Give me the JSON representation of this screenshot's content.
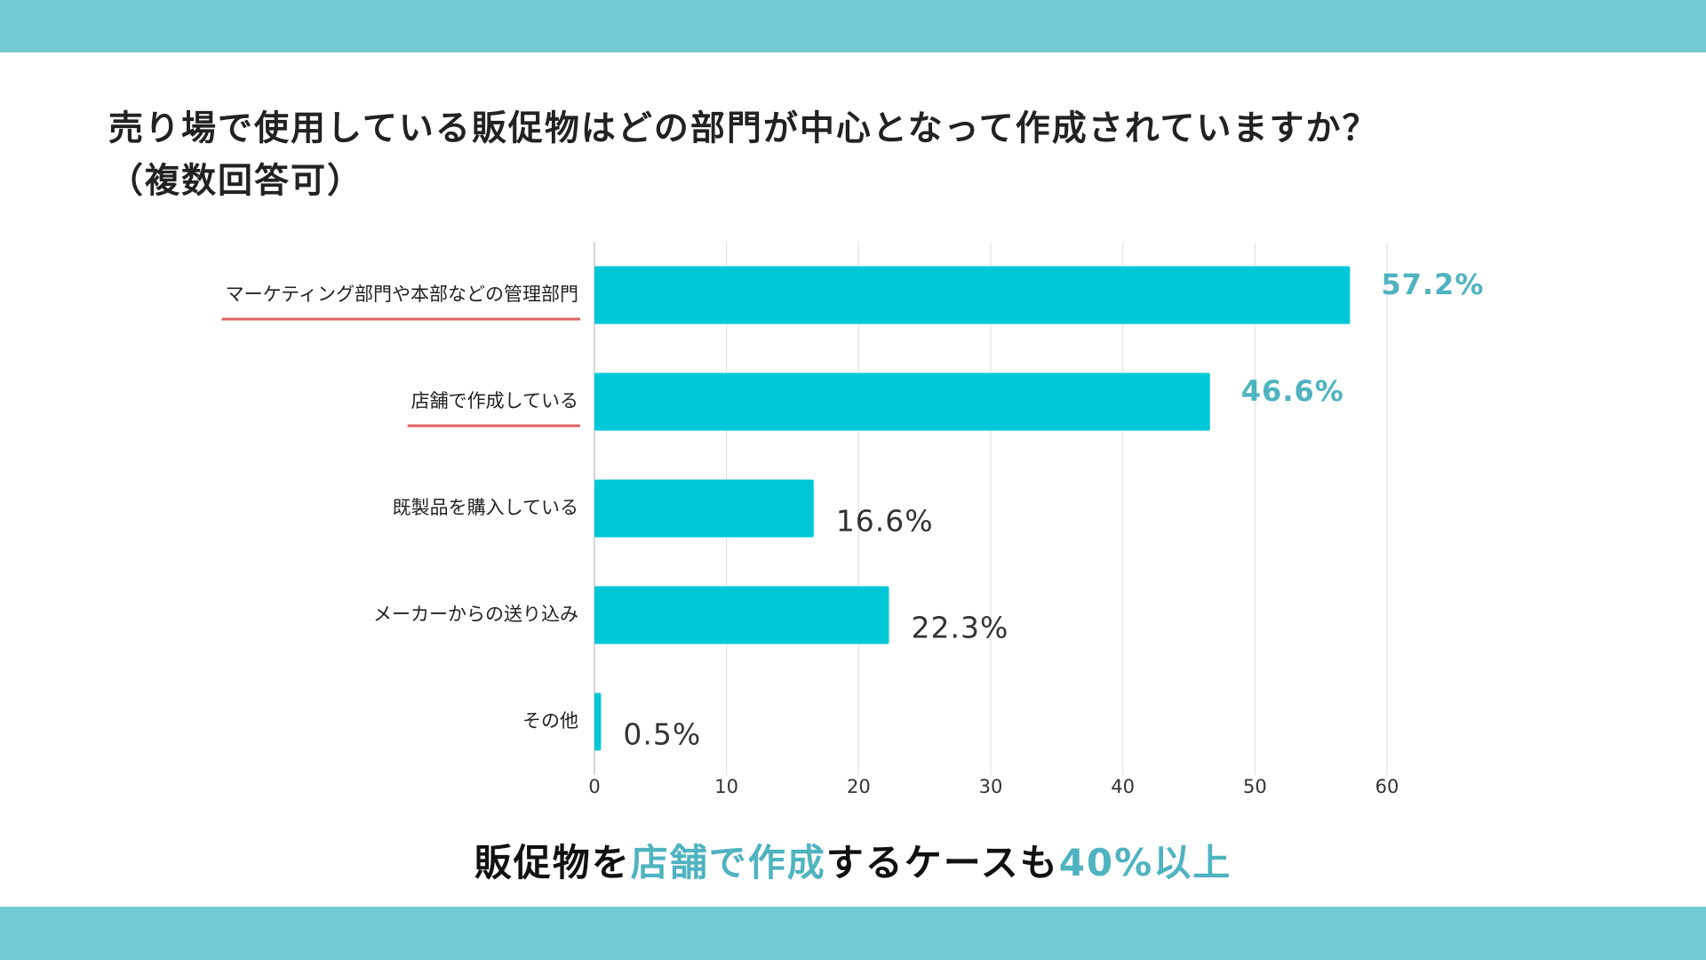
{
  "chart_data": {
    "type": "bar",
    "orientation": "horizontal",
    "title_lines": [
      "売り場で使用している販促物はどの部門が中心となって作成されていますか？",
      "（複数回答可）"
    ],
    "categories": [
      "マーケティング部門や本部などの管理部門",
      "店舗で作成している",
      "既製品を購入している",
      "メーカーからの送り込み",
      "その他"
    ],
    "values": [
      57.2,
      46.6,
      16.6,
      22.3,
      0.5
    ],
    "value_labels": [
      "57.2%",
      "46.6%",
      "16.6%",
      "22.3%",
      "0.5%"
    ],
    "color": "#00c8d8",
    "value_label_colors": [
      "#4fb3c0",
      "#4fb3c0",
      "#333333",
      "#333333",
      "#333333"
    ],
    "value_label_bold": [
      true,
      true,
      false,
      false,
      false
    ],
    "underline": [
      true,
      true,
      false,
      false,
      false
    ],
    "underline_color": "#e06060",
    "xlim": [
      0,
      60
    ],
    "xticks": [
      0,
      10,
      20,
      30,
      40,
      50,
      60
    ],
    "grid": true,
    "footer": [
      {
        "text": "販促物を",
        "color": "#111111"
      },
      {
        "text": "店舗で作成",
        "color": "#4fb3c0"
      },
      {
        "text": "するケースも",
        "color": "#111111"
      },
      {
        "text": "40%以上",
        "color": "#4fb3c0"
      }
    ]
  }
}
